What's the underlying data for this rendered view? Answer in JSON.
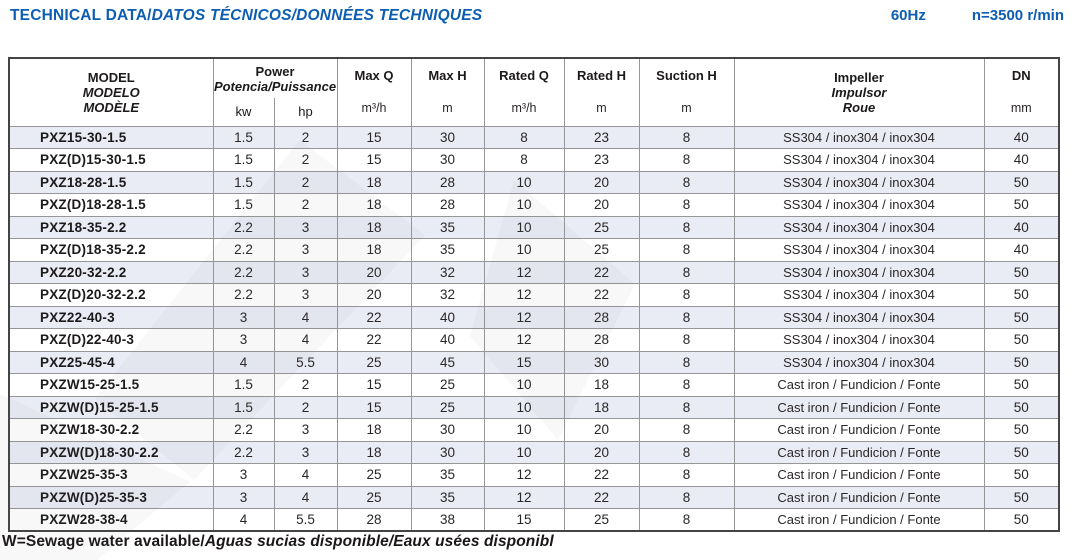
{
  "page": {
    "title_main": "TECHNICAL DATA/",
    "title_trans": "DATOS TÉCNICOS/DONNÉES TECHNIQUES",
    "frequency": "60Hz",
    "speed": "n=3500 r/min",
    "footnote_main": "W=Sewage water available/",
    "footnote_trans": "Aguas sucias disponible/Eaux usées disponibl"
  },
  "colors": {
    "accent_blue": "#0d5eb2",
    "row_shade": "#e9ecf5",
    "inner_border": "#969696",
    "outer_border": "#444444",
    "text_dark": "#1c191a"
  },
  "table": {
    "header": {
      "model_lines": {
        "l1": "MODEL",
        "l2": "MODELO",
        "l3": "MODÈLE"
      },
      "power": {
        "label": "Power",
        "sub": "Potencia/Puissance",
        "unit_kw": "kw",
        "unit_hp": "hp"
      },
      "max_q": {
        "label": "Max Q",
        "unit": "m³/h"
      },
      "max_h": {
        "label": "Max H",
        "unit": "m"
      },
      "rated_q": {
        "label": "Rated Q",
        "unit": "m³/h"
      },
      "rated_h": {
        "label": "Rated H",
        "unit": "m"
      },
      "suction_h": {
        "label": "Suction H",
        "unit": "m"
      },
      "impeller_lines": {
        "l1": "Impeller",
        "l2": "Impulsor",
        "l3": "Roue"
      },
      "dn": {
        "label": "DN",
        "unit": "mm"
      }
    },
    "rows": [
      {
        "model": "PXZ15-30-1.5",
        "kw": "1.5",
        "hp": "2",
        "max_q": "15",
        "max_h": "30",
        "rated_q": "8",
        "rated_h": "23",
        "suction_h": "8",
        "impeller": "SS304 / inox304 / inox304",
        "dn": "40"
      },
      {
        "model": "PXZ(D)15-30-1.5",
        "kw": "1.5",
        "hp": "2",
        "max_q": "15",
        "max_h": "30",
        "rated_q": "8",
        "rated_h": "23",
        "suction_h": "8",
        "impeller": "SS304 / inox304 / inox304",
        "dn": "40"
      },
      {
        "model": "PXZ18-28-1.5",
        "kw": "1.5",
        "hp": "2",
        "max_q": "18",
        "max_h": "28",
        "rated_q": "10",
        "rated_h": "20",
        "suction_h": "8",
        "impeller": "SS304 / inox304 / inox304",
        "dn": "50"
      },
      {
        "model": "PXZ(D)18-28-1.5",
        "kw": "1.5",
        "hp": "2",
        "max_q": "18",
        "max_h": "28",
        "rated_q": "10",
        "rated_h": "20",
        "suction_h": "8",
        "impeller": "SS304 / inox304 / inox304",
        "dn": "50"
      },
      {
        "model": "PXZ18-35-2.2",
        "kw": "2.2",
        "hp": "3",
        "max_q": "18",
        "max_h": "35",
        "rated_q": "10",
        "rated_h": "25",
        "suction_h": "8",
        "impeller": "SS304 / inox304 / inox304",
        "dn": "40"
      },
      {
        "model": "PXZ(D)18-35-2.2",
        "kw": "2.2",
        "hp": "3",
        "max_q": "18",
        "max_h": "35",
        "rated_q": "10",
        "rated_h": "25",
        "suction_h": "8",
        "impeller": "SS304 / inox304 / inox304",
        "dn": "40"
      },
      {
        "model": "PXZ20-32-2.2",
        "kw": "2.2",
        "hp": "3",
        "max_q": "20",
        "max_h": "32",
        "rated_q": "12",
        "rated_h": "22",
        "suction_h": "8",
        "impeller": "SS304 / inox304 / inox304",
        "dn": "50"
      },
      {
        "model": "PXZ(D)20-32-2.2",
        "kw": "2.2",
        "hp": "3",
        "max_q": "20",
        "max_h": "32",
        "rated_q": "12",
        "rated_h": "22",
        "suction_h": "8",
        "impeller": "SS304 / inox304 / inox304",
        "dn": "50"
      },
      {
        "model": "PXZ22-40-3",
        "kw": "3",
        "hp": "4",
        "max_q": "22",
        "max_h": "40",
        "rated_q": "12",
        "rated_h": "28",
        "suction_h": "8",
        "impeller": "SS304 / inox304 / inox304",
        "dn": "50"
      },
      {
        "model": "PXZ(D)22-40-3",
        "kw": "3",
        "hp": "4",
        "max_q": "22",
        "max_h": "40",
        "rated_q": "12",
        "rated_h": "28",
        "suction_h": "8",
        "impeller": "SS304 / inox304 / inox304",
        "dn": "50"
      },
      {
        "model": "PXZ25-45-4",
        "kw": "4",
        "hp": "5.5",
        "max_q": "25",
        "max_h": "45",
        "rated_q": "15",
        "rated_h": "30",
        "suction_h": "8",
        "impeller": "SS304 / inox304 / inox304",
        "dn": "50"
      },
      {
        "model": "PXZW15-25-1.5",
        "kw": "1.5",
        "hp": "2",
        "max_q": "15",
        "max_h": "25",
        "rated_q": "10",
        "rated_h": "18",
        "suction_h": "8",
        "impeller": "Cast iron / Fundicion / Fonte",
        "dn": "50"
      },
      {
        "model": "PXZW(D)15-25-1.5",
        "kw": "1.5",
        "hp": "2",
        "max_q": "15",
        "max_h": "25",
        "rated_q": "10",
        "rated_h": "18",
        "suction_h": "8",
        "impeller": "Cast iron / Fundicion / Fonte",
        "dn": "50"
      },
      {
        "model": "PXZW18-30-2.2",
        "kw": "2.2",
        "hp": "3",
        "max_q": "18",
        "max_h": "30",
        "rated_q": "10",
        "rated_h": "20",
        "suction_h": "8",
        "impeller": "Cast iron / Fundicion / Fonte",
        "dn": "50"
      },
      {
        "model": "PXZW(D)18-30-2.2",
        "kw": "2.2",
        "hp": "3",
        "max_q": "18",
        "max_h": "30",
        "rated_q": "10",
        "rated_h": "20",
        "suction_h": "8",
        "impeller": "Cast iron / Fundicion / Fonte",
        "dn": "50"
      },
      {
        "model": "PXZW25-35-3",
        "kw": "3",
        "hp": "4",
        "max_q": "25",
        "max_h": "35",
        "rated_q": "12",
        "rated_h": "22",
        "suction_h": "8",
        "impeller": "Cast iron / Fundicion / Fonte",
        "dn": "50"
      },
      {
        "model": "PXZW(D)25-35-3",
        "kw": "3",
        "hp": "4",
        "max_q": "25",
        "max_h": "35",
        "rated_q": "12",
        "rated_h": "22",
        "suction_h": "8",
        "impeller": "Cast iron / Fundicion / Fonte",
        "dn": "50"
      },
      {
        "model": "PXZW28-38-4",
        "kw": "4",
        "hp": "5.5",
        "max_q": "28",
        "max_h": "38",
        "rated_q": "15",
        "rated_h": "25",
        "suction_h": "8",
        "impeller": "Cast iron / Fundicion / Fonte",
        "dn": "50"
      }
    ]
  }
}
